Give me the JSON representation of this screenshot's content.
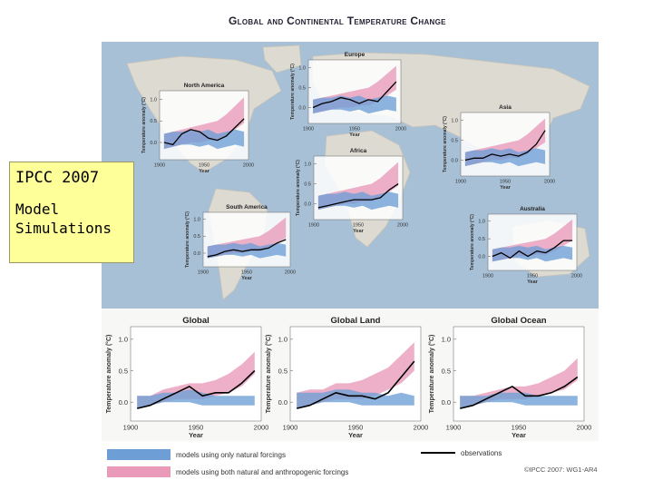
{
  "title": "Global and Continental Temperature Change",
  "note": {
    "title": "IPCC 2007",
    "subtitle_line1": "Model",
    "subtitle_line2": "Simulations"
  },
  "legend": {
    "natural": "models using only natural forcings",
    "anthropogenic": "models using both natural and anthropogenic forcings",
    "observations": "observations"
  },
  "copyright": "©IPCC 2007: WG1-AR4",
  "colors": {
    "natural": "#6d9fd6",
    "anthropogenic": "#e89ab8",
    "overlap": "#a38ac4",
    "observations": "#000000",
    "map_land": "#dddad2",
    "map_ocean": "#a7c0d6"
  },
  "chart_data": [
    {
      "type": "area",
      "title": "Europe",
      "ylabel": "Temperature anomaly (°C)",
      "xlabel": "Year",
      "x_ticks": [
        "1900",
        "1950",
        "2000"
      ],
      "y_ticks": [
        "0.0",
        "0.5",
        "1.0"
      ],
      "xlim": [
        1900,
        2000
      ],
      "ylim": [
        -0.4,
        1.2
      ],
      "decades": [
        1905,
        1915,
        1925,
        1935,
        1945,
        1955,
        1965,
        1975,
        1985,
        1995
      ],
      "observations": [
        0.0,
        0.1,
        0.15,
        0.25,
        0.2,
        0.1,
        0.2,
        0.15,
        0.4,
        0.65
      ],
      "natural_range": [
        [
          -0.15,
          0.2
        ],
        [
          -0.1,
          0.25
        ],
        [
          -0.05,
          0.25
        ],
        [
          -0.05,
          0.3
        ],
        [
          -0.1,
          0.25
        ],
        [
          -0.05,
          0.3
        ],
        [
          -0.15,
          0.2
        ],
        [
          -0.1,
          0.25
        ],
        [
          -0.05,
          0.3
        ],
        [
          -0.1,
          0.25
        ]
      ],
      "anthropogenic_range": [
        [
          -0.15,
          0.2
        ],
        [
          -0.1,
          0.25
        ],
        [
          -0.05,
          0.3
        ],
        [
          0.0,
          0.35
        ],
        [
          0.0,
          0.4
        ],
        [
          0.05,
          0.45
        ],
        [
          0.05,
          0.5
        ],
        [
          0.15,
          0.65
        ],
        [
          0.3,
          0.85
        ],
        [
          0.45,
          1.05
        ]
      ]
    },
    {
      "type": "area",
      "title": "North America",
      "ylabel": "Temperature anomaly (°C)",
      "xlabel": "Year",
      "x_ticks": [
        "1900",
        "1950",
        "2000"
      ],
      "y_ticks": [
        "0.0",
        "0.5",
        "1.0"
      ],
      "xlim": [
        1900,
        2000
      ],
      "ylim": [
        -0.4,
        1.2
      ],
      "decades": [
        1905,
        1915,
        1925,
        1935,
        1945,
        1955,
        1965,
        1975,
        1985,
        1995
      ],
      "observations": [
        0.0,
        -0.05,
        0.2,
        0.3,
        0.25,
        0.1,
        0.05,
        0.15,
        0.35,
        0.55
      ],
      "natural_range": [
        [
          -0.15,
          0.2
        ],
        [
          -0.1,
          0.25
        ],
        [
          -0.05,
          0.25
        ],
        [
          -0.05,
          0.3
        ],
        [
          -0.1,
          0.25
        ],
        [
          -0.05,
          0.3
        ],
        [
          -0.15,
          0.2
        ],
        [
          -0.1,
          0.25
        ],
        [
          -0.05,
          0.3
        ],
        [
          -0.1,
          0.25
        ]
      ],
      "anthropogenic_range": [
        [
          -0.15,
          0.2
        ],
        [
          -0.1,
          0.25
        ],
        [
          -0.05,
          0.3
        ],
        [
          0.0,
          0.35
        ],
        [
          0.0,
          0.4
        ],
        [
          0.05,
          0.45
        ],
        [
          0.05,
          0.5
        ],
        [
          0.15,
          0.65
        ],
        [
          0.3,
          0.85
        ],
        [
          0.45,
          1.05
        ]
      ]
    },
    {
      "type": "area",
      "title": "Asia",
      "ylabel": "Temperature anomaly (°C)",
      "xlabel": "Year",
      "x_ticks": [
        "1900",
        "1950",
        "2000"
      ],
      "y_ticks": [
        "0.0",
        "0.5",
        "1.0"
      ],
      "xlim": [
        1900,
        2000
      ],
      "ylim": [
        -0.4,
        1.2
      ],
      "decades": [
        1905,
        1915,
        1925,
        1935,
        1945,
        1955,
        1965,
        1975,
        1985,
        1995
      ],
      "observations": [
        0.0,
        0.05,
        0.05,
        0.15,
        0.1,
        0.15,
        0.1,
        0.2,
        0.4,
        0.75
      ],
      "natural_range": [
        [
          -0.15,
          0.2
        ],
        [
          -0.1,
          0.25
        ],
        [
          -0.05,
          0.25
        ],
        [
          -0.05,
          0.3
        ],
        [
          -0.1,
          0.25
        ],
        [
          -0.05,
          0.3
        ],
        [
          -0.15,
          0.2
        ],
        [
          -0.1,
          0.25
        ],
        [
          -0.05,
          0.3
        ],
        [
          -0.1,
          0.25
        ]
      ],
      "anthropogenic_range": [
        [
          -0.15,
          0.2
        ],
        [
          -0.1,
          0.25
        ],
        [
          -0.05,
          0.3
        ],
        [
          0.0,
          0.35
        ],
        [
          0.0,
          0.4
        ],
        [
          0.05,
          0.45
        ],
        [
          0.05,
          0.5
        ],
        [
          0.15,
          0.65
        ],
        [
          0.3,
          0.85
        ],
        [
          0.45,
          1.05
        ]
      ]
    },
    {
      "type": "area",
      "title": "Africa",
      "ylabel": "Temperature anomaly (°C)",
      "xlabel": "Year",
      "x_ticks": [
        "1900",
        "1950",
        "2000"
      ],
      "y_ticks": [
        "0.0",
        "0.5",
        "1.0"
      ],
      "xlim": [
        1900,
        2000
      ],
      "ylim": [
        -0.4,
        1.2
      ],
      "decades": [
        1905,
        1915,
        1925,
        1935,
        1945,
        1955,
        1965,
        1975,
        1985,
        1995
      ],
      "observations": [
        -0.1,
        -0.05,
        0.0,
        0.05,
        0.1,
        0.1,
        0.1,
        0.15,
        0.35,
        0.5
      ],
      "natural_range": [
        [
          -0.15,
          0.2
        ],
        [
          -0.1,
          0.25
        ],
        [
          -0.05,
          0.25
        ],
        [
          -0.05,
          0.3
        ],
        [
          -0.1,
          0.25
        ],
        [
          -0.05,
          0.3
        ],
        [
          -0.15,
          0.2
        ],
        [
          -0.1,
          0.25
        ],
        [
          -0.05,
          0.3
        ],
        [
          -0.1,
          0.25
        ]
      ],
      "anthropogenic_range": [
        [
          -0.15,
          0.2
        ],
        [
          -0.1,
          0.25
        ],
        [
          -0.05,
          0.3
        ],
        [
          0.0,
          0.35
        ],
        [
          0.0,
          0.4
        ],
        [
          0.05,
          0.45
        ],
        [
          0.05,
          0.5
        ],
        [
          0.15,
          0.65
        ],
        [
          0.3,
          0.85
        ],
        [
          0.45,
          1.05
        ]
      ]
    },
    {
      "type": "area",
      "title": "South America",
      "ylabel": "Temperature anomaly (°C)",
      "xlabel": "Year",
      "x_ticks": [
        "1900",
        "1950",
        "2000"
      ],
      "y_ticks": [
        "0.0",
        "0.5",
        "1.0"
      ],
      "xlim": [
        1900,
        2000
      ],
      "ylim": [
        -0.4,
        1.2
      ],
      "decades": [
        1905,
        1915,
        1925,
        1935,
        1945,
        1955,
        1965,
        1975,
        1985,
        1995
      ],
      "observations": [
        -0.1,
        -0.05,
        0.05,
        0.1,
        0.05,
        0.1,
        0.1,
        0.15,
        0.3,
        0.4
      ],
      "natural_range": [
        [
          -0.15,
          0.2
        ],
        [
          -0.1,
          0.25
        ],
        [
          -0.05,
          0.25
        ],
        [
          -0.05,
          0.3
        ],
        [
          -0.1,
          0.25
        ],
        [
          -0.05,
          0.3
        ],
        [
          -0.15,
          0.2
        ],
        [
          -0.1,
          0.25
        ],
        [
          -0.05,
          0.3
        ],
        [
          -0.1,
          0.25
        ]
      ],
      "anthropogenic_range": [
        [
          -0.15,
          0.2
        ],
        [
          -0.1,
          0.25
        ],
        [
          -0.05,
          0.3
        ],
        [
          0.0,
          0.35
        ],
        [
          0.0,
          0.4
        ],
        [
          0.05,
          0.45
        ],
        [
          0.05,
          0.5
        ],
        [
          0.15,
          0.65
        ],
        [
          0.3,
          0.85
        ],
        [
          0.45,
          1.05
        ]
      ]
    },
    {
      "type": "area",
      "title": "Australia",
      "ylabel": "Temperature anomaly (°C)",
      "xlabel": "Year",
      "x_ticks": [
        "1900",
        "1950",
        "2000"
      ],
      "y_ticks": [
        "0.0",
        "0.5",
        "1.0"
      ],
      "xlim": [
        1900,
        2000
      ],
      "ylim": [
        -0.4,
        1.2
      ],
      "decades": [
        1905,
        1915,
        1925,
        1935,
        1945,
        1955,
        1965,
        1975,
        1985,
        1995
      ],
      "observations": [
        0.0,
        0.1,
        -0.05,
        0.15,
        0.0,
        0.15,
        0.1,
        0.25,
        0.45,
        0.45
      ],
      "natural_range": [
        [
          -0.15,
          0.2
        ],
        [
          -0.1,
          0.25
        ],
        [
          -0.05,
          0.25
        ],
        [
          -0.05,
          0.3
        ],
        [
          -0.1,
          0.25
        ],
        [
          -0.05,
          0.3
        ],
        [
          -0.15,
          0.2
        ],
        [
          -0.1,
          0.25
        ],
        [
          -0.05,
          0.3
        ],
        [
          -0.1,
          0.25
        ]
      ],
      "anthropogenic_range": [
        [
          -0.15,
          0.2
        ],
        [
          -0.1,
          0.25
        ],
        [
          -0.05,
          0.3
        ],
        [
          0.0,
          0.35
        ],
        [
          0.0,
          0.4
        ],
        [
          0.05,
          0.45
        ],
        [
          0.05,
          0.5
        ],
        [
          0.15,
          0.65
        ],
        [
          0.3,
          0.85
        ],
        [
          0.45,
          1.05
        ]
      ]
    },
    {
      "type": "area",
      "title": "Global",
      "ylabel": "Temperature anomaly (°C)",
      "xlabel": "Year",
      "x_ticks": [
        "1900",
        "1950",
        "2000"
      ],
      "y_ticks": [
        "0.0",
        "0.5",
        "1.0"
      ],
      "xlim": [
        1900,
        2000
      ],
      "ylim": [
        -0.3,
        1.2
      ],
      "decades": [
        1905,
        1915,
        1925,
        1935,
        1945,
        1955,
        1965,
        1975,
        1985,
        1995
      ],
      "observations": [
        -0.1,
        -0.05,
        0.05,
        0.15,
        0.25,
        0.1,
        0.15,
        0.15,
        0.3,
        0.5
      ],
      "natural_range": [
        [
          -0.1,
          0.1
        ],
        [
          -0.05,
          0.1
        ],
        [
          0.0,
          0.15
        ],
        [
          0.0,
          0.15
        ],
        [
          0.0,
          0.2
        ],
        [
          -0.05,
          0.15
        ],
        [
          -0.05,
          0.1
        ],
        [
          -0.05,
          0.1
        ],
        [
          -0.05,
          0.1
        ],
        [
          -0.05,
          0.1
        ]
      ],
      "anthropogenic_range": [
        [
          -0.1,
          0.1
        ],
        [
          -0.05,
          0.1
        ],
        [
          0.0,
          0.2
        ],
        [
          0.05,
          0.25
        ],
        [
          0.05,
          0.3
        ],
        [
          0.05,
          0.3
        ],
        [
          0.1,
          0.35
        ],
        [
          0.15,
          0.45
        ],
        [
          0.25,
          0.6
        ],
        [
          0.45,
          0.8
        ]
      ]
    },
    {
      "type": "area",
      "title": "Global Land",
      "ylabel": "Temperature anomaly (°C)",
      "xlabel": "Year",
      "x_ticks": [
        "1900",
        "1950",
        "2000"
      ],
      "y_ticks": [
        "0.0",
        "0.5",
        "1.0"
      ],
      "xlim": [
        1900,
        2000
      ],
      "ylim": [
        -0.3,
        1.2
      ],
      "decades": [
        1905,
        1915,
        1925,
        1935,
        1945,
        1955,
        1965,
        1975,
        1985,
        1995
      ],
      "observations": [
        -0.1,
        -0.05,
        0.05,
        0.15,
        0.1,
        0.1,
        0.05,
        0.15,
        0.4,
        0.65
      ],
      "natural_range": [
        [
          -0.1,
          0.15
        ],
        [
          -0.05,
          0.15
        ],
        [
          0.0,
          0.15
        ],
        [
          0.0,
          0.2
        ],
        [
          0.0,
          0.2
        ],
        [
          -0.05,
          0.15
        ],
        [
          -0.05,
          0.15
        ],
        [
          -0.05,
          0.1
        ],
        [
          -0.05,
          0.15
        ],
        [
          -0.05,
          0.1
        ]
      ],
      "anthropogenic_range": [
        [
          -0.1,
          0.15
        ],
        [
          -0.05,
          0.2
        ],
        [
          0.0,
          0.2
        ],
        [
          0.05,
          0.3
        ],
        [
          0.05,
          0.3
        ],
        [
          0.05,
          0.35
        ],
        [
          0.1,
          0.45
        ],
        [
          0.2,
          0.55
        ],
        [
          0.3,
          0.75
        ],
        [
          0.5,
          0.95
        ]
      ]
    },
    {
      "type": "area",
      "title": "Global Ocean",
      "ylabel": "Temperature anomaly (°C)",
      "xlabel": "Year",
      "x_ticks": [
        "1900",
        "1950",
        "2000"
      ],
      "y_ticks": [
        "0.0",
        "0.5",
        "1.0"
      ],
      "xlim": [
        1900,
        2000
      ],
      "ylim": [
        -0.3,
        1.2
      ],
      "decades": [
        1905,
        1915,
        1925,
        1935,
        1945,
        1955,
        1965,
        1975,
        1985,
        1995
      ],
      "observations": [
        -0.1,
        -0.05,
        0.05,
        0.15,
        0.25,
        0.1,
        0.1,
        0.15,
        0.25,
        0.4
      ],
      "natural_range": [
        [
          -0.1,
          0.1
        ],
        [
          -0.05,
          0.1
        ],
        [
          0.0,
          0.1
        ],
        [
          0.0,
          0.15
        ],
        [
          0.0,
          0.15
        ],
        [
          -0.05,
          0.15
        ],
        [
          -0.05,
          0.1
        ],
        [
          -0.05,
          0.1
        ],
        [
          -0.05,
          0.1
        ],
        [
          -0.05,
          0.1
        ]
      ],
      "anthropogenic_range": [
        [
          -0.1,
          0.1
        ],
        [
          -0.05,
          0.1
        ],
        [
          0.0,
          0.15
        ],
        [
          0.05,
          0.2
        ],
        [
          0.05,
          0.25
        ],
        [
          0.05,
          0.25
        ],
        [
          0.1,
          0.3
        ],
        [
          0.15,
          0.4
        ],
        [
          0.2,
          0.5
        ],
        [
          0.35,
          0.7
        ]
      ]
    }
  ]
}
